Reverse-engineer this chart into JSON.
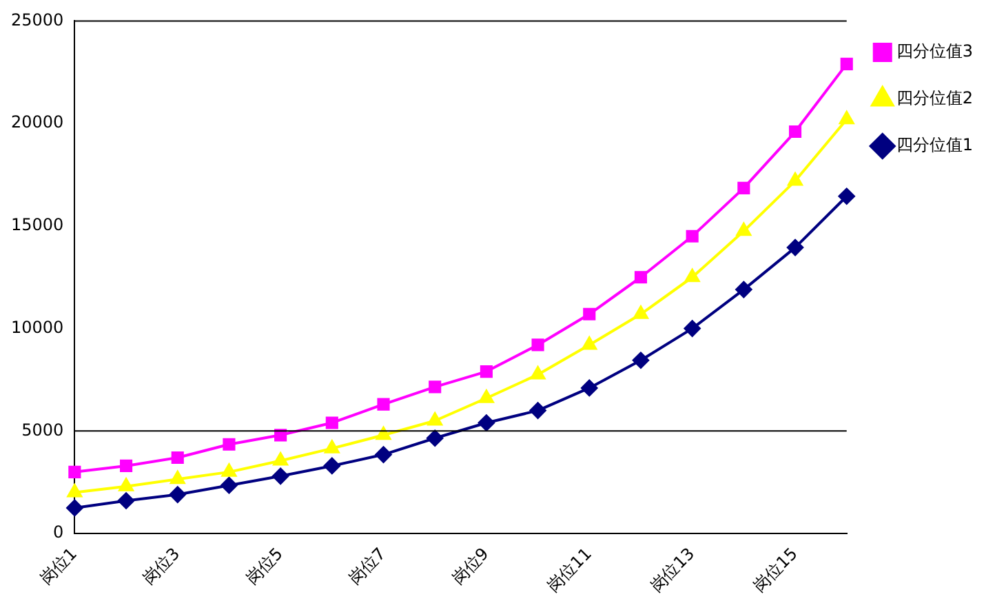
{
  "chart_data": {
    "type": "line",
    "categories": [
      "岗位1",
      null,
      "岗位3",
      null,
      "岗位5",
      null,
      "岗位7",
      null,
      "岗位9",
      null,
      "岗位11",
      null,
      "岗位13",
      null,
      "岗位15",
      null
    ],
    "series": [
      {
        "name": "四分位值3",
        "color": "#ff00ff",
        "marker": "square",
        "values": [
          3000,
          3300,
          3700,
          4350,
          4800,
          5400,
          6300,
          7150,
          7900,
          9200,
          10700,
          12500,
          14500,
          16850,
          19600,
          22900
        ]
      },
      {
        "name": "四分位值2",
        "color": "#ffff00",
        "marker": "triangle",
        "values": [
          2000,
          2300,
          2650,
          3000,
          3550,
          4150,
          4800,
          5500,
          6600,
          7750,
          9200,
          10700,
          12500,
          14750,
          17200,
          20200
        ]
      },
      {
        "name": "四分位值1",
        "color": "#000080",
        "marker": "diamond",
        "values": [
          1250,
          1600,
          1900,
          2350,
          2800,
          3300,
          3850,
          4650,
          5400,
          6000,
          7100,
          8450,
          10000,
          11900,
          13950,
          16450
        ]
      }
    ],
    "ylim": [
      0,
      25000
    ],
    "yticks": [
      0,
      5000,
      10000,
      15000,
      20000,
      25000
    ],
    "ref_lines": [
      {
        "axis": "y",
        "value": 5000
      }
    ],
    "grid": false,
    "legend": "right"
  }
}
